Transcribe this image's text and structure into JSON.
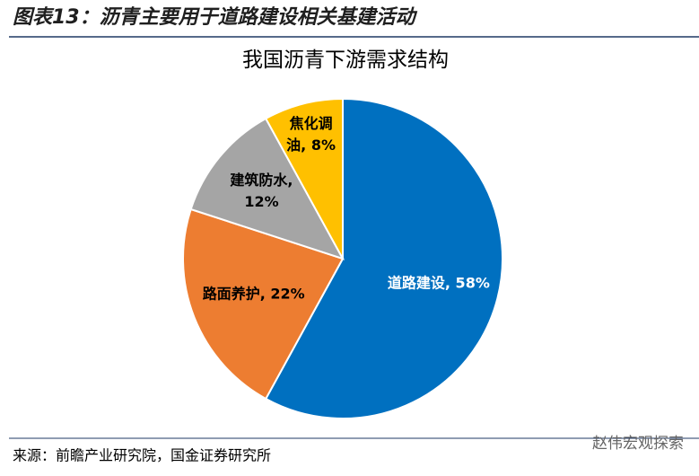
{
  "header": {
    "title": "图表13：沥青主要用于道路建设相关基建活动"
  },
  "chart_data": {
    "type": "pie",
    "title": "我国沥青下游需求结构",
    "values": [
      58,
      22,
      12,
      8
    ],
    "value_labels": [
      [
        "道路建设, 58%"
      ],
      [
        "路面养护, 22%"
      ],
      [
        "建筑防水,",
        "12%"
      ],
      [
        "焦化调",
        "油, 8%"
      ]
    ],
    "colors": [
      "#0070c0",
      "#ed7d31",
      "#a5a5a5",
      "#ffc000"
    ],
    "label_colors": [
      "#ffffff",
      "#000000",
      "#000000",
      "#000000"
    ]
  },
  "footer": {
    "source": "来源：前瞻产业研究院，国金证券研究所",
    "watermark": "赵伟宏观探索"
  }
}
